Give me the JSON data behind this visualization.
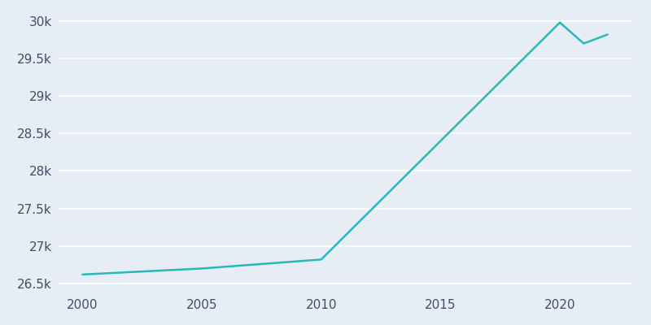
{
  "years": [
    2000,
    2005,
    2010,
    2020,
    2021,
    2022
  ],
  "population": [
    26620,
    26700,
    26820,
    29980,
    29700,
    29820
  ],
  "line_color": "#2ab8b8",
  "bg_color": "#e6edf4",
  "grid_color": "#ffffff",
  "tick_color": "#3d5068",
  "xlim": [
    1999.0,
    2023.0
  ],
  "ylim": [
    26380,
    30150
  ],
  "xticks": [
    2000,
    2005,
    2010,
    2015,
    2020
  ],
  "ytick_values": [
    26500,
    27000,
    27500,
    28000,
    28500,
    29000,
    29500,
    30000
  ],
  "ytick_labels": [
    "26.5k",
    "27k",
    "27.5k",
    "28k",
    "28.5k",
    "29k",
    "29.5k",
    "30k"
  ],
  "figsize": [
    8.0,
    4.0
  ],
  "dpi": 100
}
